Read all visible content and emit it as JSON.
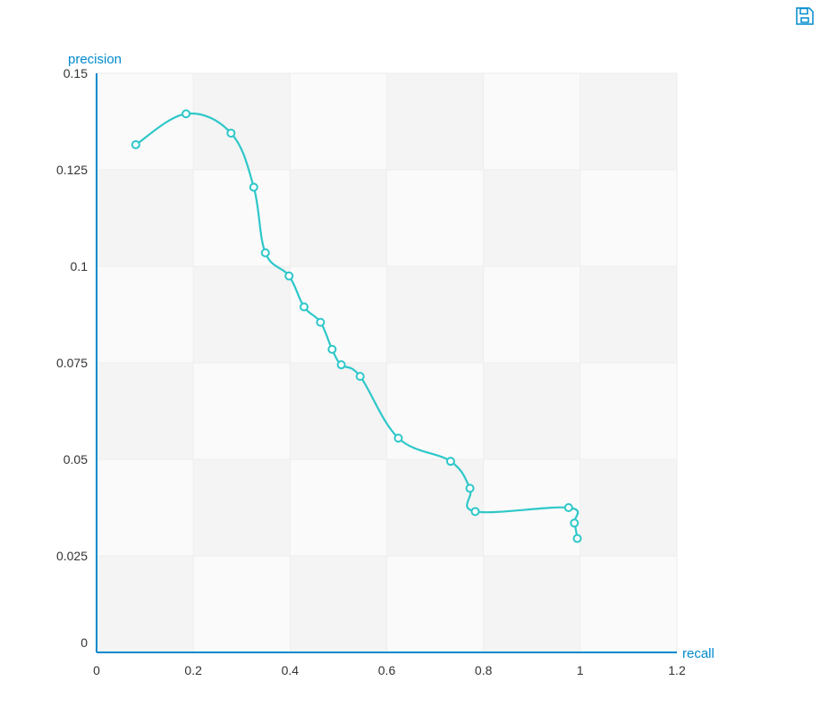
{
  "toolbox": {
    "save_icon": "save-as-image-icon"
  },
  "colors": {
    "series": "#2ec7c9",
    "axis": "#008acd",
    "axis_label": "#008acd",
    "tick_text": "#333333",
    "grid": "#eeeeee",
    "band_a": "#fafafa",
    "band_b": "#f4f4f4"
  },
  "chart_data": {
    "type": "line",
    "smooth": true,
    "title": "",
    "xlabel": "recall",
    "ylabel": "precision",
    "xlim": [
      0,
      1.2
    ],
    "ylim": [
      0,
      0.15
    ],
    "xticks": [
      "0",
      "0.2",
      "0.4",
      "0.6",
      "0.8",
      "1",
      "1.2"
    ],
    "yticks": [
      "0",
      "0.025",
      "0.05",
      "0.075",
      "0.1",
      "0.125",
      "0.15"
    ],
    "grid": true,
    "series": [
      {
        "points": [
          [
            0.081,
            0.1315
          ],
          [
            0.185,
            0.1395
          ],
          [
            0.278,
            0.1345
          ],
          [
            0.325,
            0.1205
          ],
          [
            0.349,
            0.1035
          ],
          [
            0.398,
            0.0975
          ],
          [
            0.429,
            0.0895
          ],
          [
            0.463,
            0.0855
          ],
          [
            0.487,
            0.0785
          ],
          [
            0.506,
            0.0745
          ],
          [
            0.545,
            0.0715
          ],
          [
            0.624,
            0.0555
          ],
          [
            0.732,
            0.0495
          ],
          [
            0.772,
            0.0425
          ],
          [
            0.783,
            0.0365
          ],
          [
            0.976,
            0.0375
          ],
          [
            0.988,
            0.0335
          ],
          [
            0.994,
            0.0295
          ]
        ]
      }
    ]
  }
}
